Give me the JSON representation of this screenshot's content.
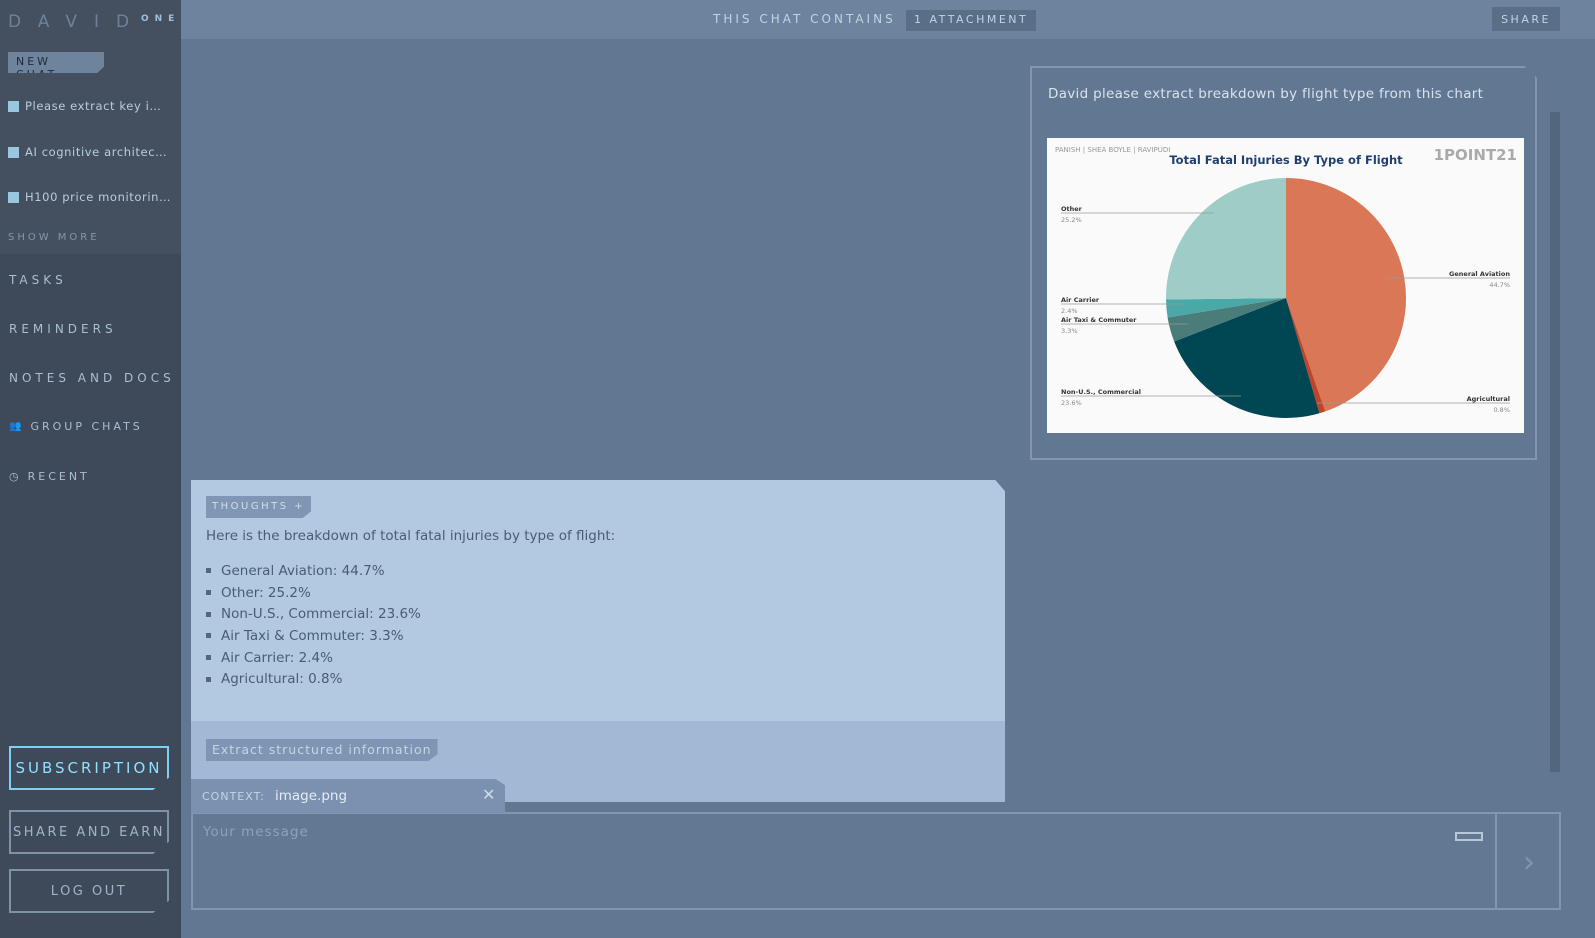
{
  "app": {
    "logo": "DAVID",
    "logo_sup": "ONE"
  },
  "sidebar": {
    "new_chat": "NEW CHAT",
    "history": [
      "Please extract key i…",
      "AI cognitive architec…",
      "H100 price monitorin…"
    ],
    "show_more": "SHOW MORE",
    "nav": {
      "tasks": "TASKS",
      "reminders": "REMINDERS",
      "notes": "NOTES AND DOCS",
      "group": "GROUP CHATS",
      "recent": "RECENT"
    },
    "subscription": "SUBSCRIPTION",
    "share_earn": "SHARE AND EARN",
    "logout": "LOG OUT"
  },
  "topbar": {
    "text": "THIS CHAT CONTAINS",
    "attachment": "1 ATTACHMENT",
    "share": "SHARE"
  },
  "user_message": {
    "text": "David please extract breakdown by flight type from this chart"
  },
  "chart_data": {
    "type": "pie",
    "title": "Total Fatal Injuries By Type of Flight",
    "watermark_left": "PANISH | SHEA BOYLE | RAVIPUDI",
    "watermark_right": "1POINT21",
    "categories": [
      "General Aviation",
      "Agricultural",
      "Non-U.S., Commercial",
      "Air Taxi & Commuter",
      "Air Carrier",
      "Other"
    ],
    "values": [
      44.7,
      0.8,
      23.6,
      3.3,
      2.4,
      25.2
    ],
    "labels": [
      "44.7%",
      "0.8%",
      "23.6%",
      "3.3%",
      "2.4%",
      "25.2%"
    ],
    "colors": [
      "#d97757",
      "#c0442a",
      "#004653",
      "#4a7c7a",
      "#4aa8a6",
      "#9dcdc6"
    ]
  },
  "assistant": {
    "thoughts": "THOUGHTS +",
    "intro": "Here is the breakdown of total fatal injuries by type of flight:",
    "items": [
      "General Aviation: 44.7%",
      "Other: 25.2%",
      "Non-U.S., Commercial: 23.6%",
      "Air Taxi & Commuter: 3.3%",
      "Air Carrier: 2.4%",
      "Agricultural: 0.8%"
    ],
    "suggestion": "Extract structured information"
  },
  "context": {
    "label": "CONTEXT:",
    "file": "image.png"
  },
  "input": {
    "placeholder": "Your message"
  }
}
